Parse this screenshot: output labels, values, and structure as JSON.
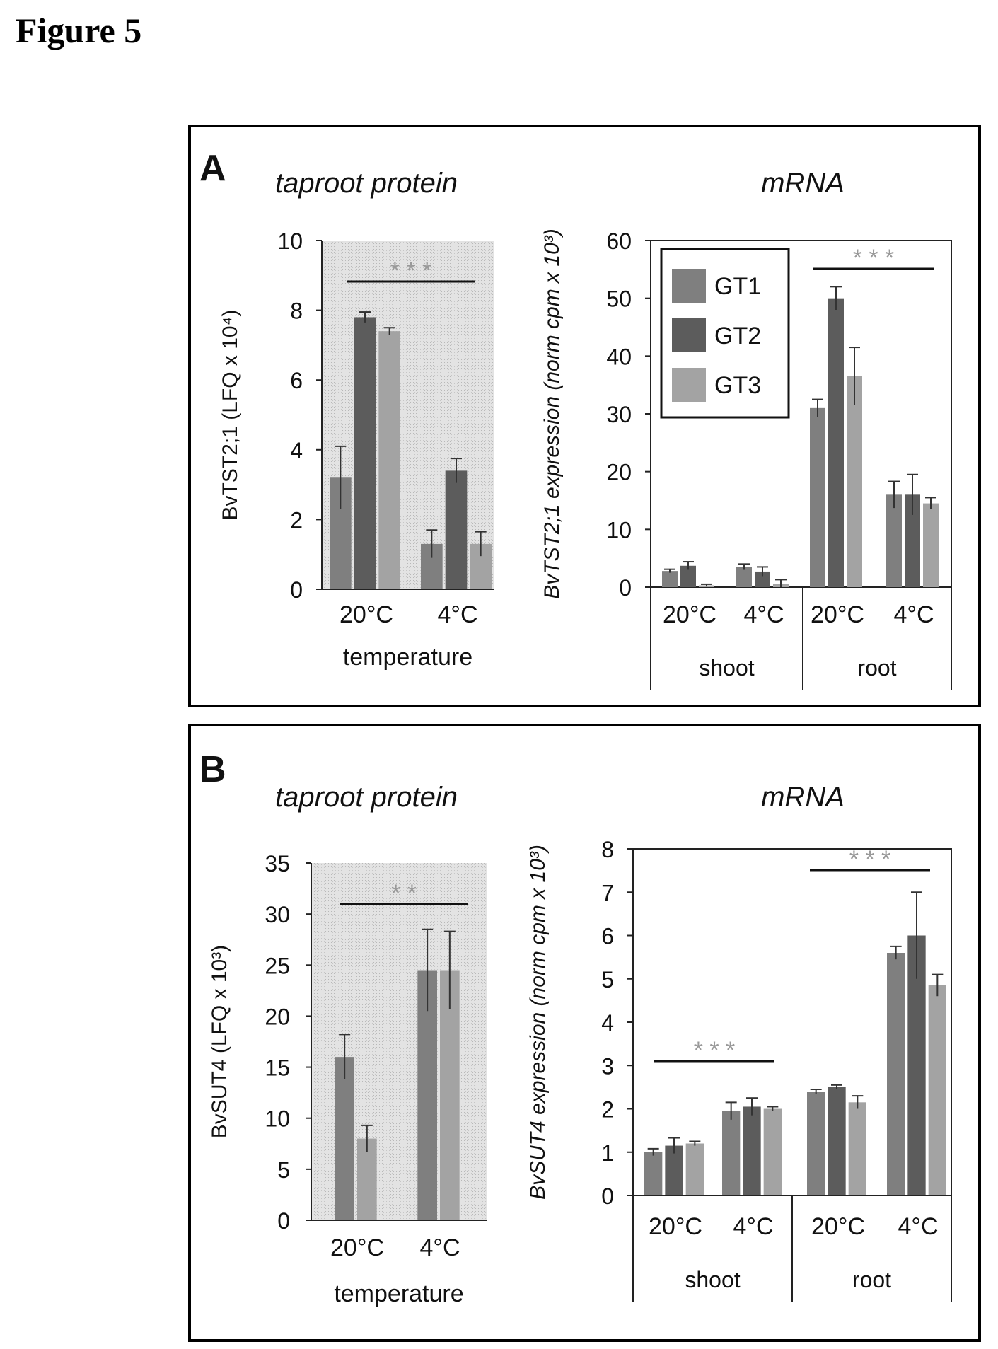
{
  "figure_title": "Figure 5",
  "colors": {
    "GT1": "#7f7f7f",
    "GT2": "#5c5c5c",
    "GT3": "#a3a3a3",
    "panel_background": "#dcdcdc",
    "frame": "#000000"
  },
  "panels": [
    {
      "letter": "A",
      "left_title": "taproot protein",
      "right_title": "mRNA"
    },
    {
      "letter": "B",
      "left_title": "taproot protein",
      "right_title": "mRNA"
    }
  ],
  "chart_data": [
    {
      "id": "A-protein",
      "type": "bar",
      "title": "taproot protein",
      "ylabel": "BvTST2;1 (LFQ x 10⁴)",
      "xlabel": "temperature",
      "categories": [
        "20°C",
        "4°C"
      ],
      "ylim": [
        0,
        10
      ],
      "yticks": [
        0,
        2,
        4,
        6,
        8,
        10
      ],
      "series": [
        {
          "name": "GT1",
          "values": [
            3.2,
            1.3
          ],
          "errors": [
            0.9,
            0.4
          ]
        },
        {
          "name": "GT2",
          "values": [
            7.8,
            3.4
          ],
          "errors": [
            0.15,
            0.35
          ]
        },
        {
          "name": "GT3",
          "values": [
            7.4,
            1.3
          ],
          "errors": [
            0.1,
            0.35
          ]
        }
      ],
      "significance": "* * *",
      "grid": false
    },
    {
      "id": "A-mrna",
      "type": "bar",
      "title": "mRNA",
      "ylabel": "BvTST2;1 expression (norm cpm x 10³)",
      "categories": [
        "20°C",
        "4°C",
        "20°C",
        "4°C"
      ],
      "groups": [
        "shoot",
        "root"
      ],
      "ylim": [
        0,
        60
      ],
      "yticks": [
        0,
        10,
        20,
        30,
        40,
        50,
        60
      ],
      "series": [
        {
          "name": "GT1",
          "values": [
            2.8,
            3.5,
            31,
            16
          ],
          "errors": [
            0.3,
            0.5,
            1.5,
            2.3
          ]
        },
        {
          "name": "GT2",
          "values": [
            3.7,
            2.7,
            50,
            16
          ],
          "errors": [
            0.7,
            0.8,
            2.0,
            3.5
          ]
        },
        {
          "name": "GT3",
          "values": [
            0.3,
            0.5,
            36.5,
            14.5
          ],
          "errors": [
            0.2,
            0.8,
            5.0,
            1.0
          ]
        }
      ],
      "legend": {
        "entries": [
          "GT1",
          "GT2",
          "GT3"
        ],
        "position": "top-left"
      },
      "significance": "* * *",
      "grid": false
    },
    {
      "id": "B-protein",
      "type": "bar",
      "title": "taproot protein",
      "ylabel": "BvSUT4 (LFQ x 10³)",
      "xlabel": "temperature",
      "categories": [
        "20°C",
        "4°C"
      ],
      "ylim": [
        0,
        35
      ],
      "yticks": [
        0,
        5,
        10,
        15,
        20,
        25,
        30,
        35
      ],
      "series": [
        {
          "name": "GT1",
          "values": [
            16,
            24.5
          ],
          "errors": [
            2.2,
            4.0
          ]
        },
        {
          "name": "GT3",
          "values": [
            8,
            24.5
          ],
          "errors": [
            1.3,
            3.8
          ]
        }
      ],
      "significance": "* *",
      "grid": false
    },
    {
      "id": "B-mrna",
      "type": "bar",
      "title": "mRNA",
      "ylabel": "BvSUT4 expression (norm cpm x 10³)",
      "categories": [
        "20°C",
        "4°C",
        "20°C",
        "4°C"
      ],
      "groups": [
        "shoot",
        "root"
      ],
      "ylim": [
        0,
        8
      ],
      "yticks": [
        0,
        1,
        2,
        3,
        4,
        5,
        6,
        7,
        8
      ],
      "series": [
        {
          "name": "GT1",
          "values": [
            1.0,
            1.95,
            2.4,
            5.6
          ],
          "errors": [
            0.08,
            0.2,
            0.05,
            0.15
          ]
        },
        {
          "name": "GT2",
          "values": [
            1.15,
            2.05,
            2.5,
            6.0
          ],
          "errors": [
            0.18,
            0.2,
            0.05,
            1.0
          ]
        },
        {
          "name": "GT3",
          "values": [
            1.2,
            2.0,
            2.15,
            4.85
          ],
          "errors": [
            0.05,
            0.05,
            0.15,
            0.25
          ]
        }
      ],
      "significance_shoot": "* * *",
      "significance_root": "* * *",
      "grid": false
    }
  ]
}
